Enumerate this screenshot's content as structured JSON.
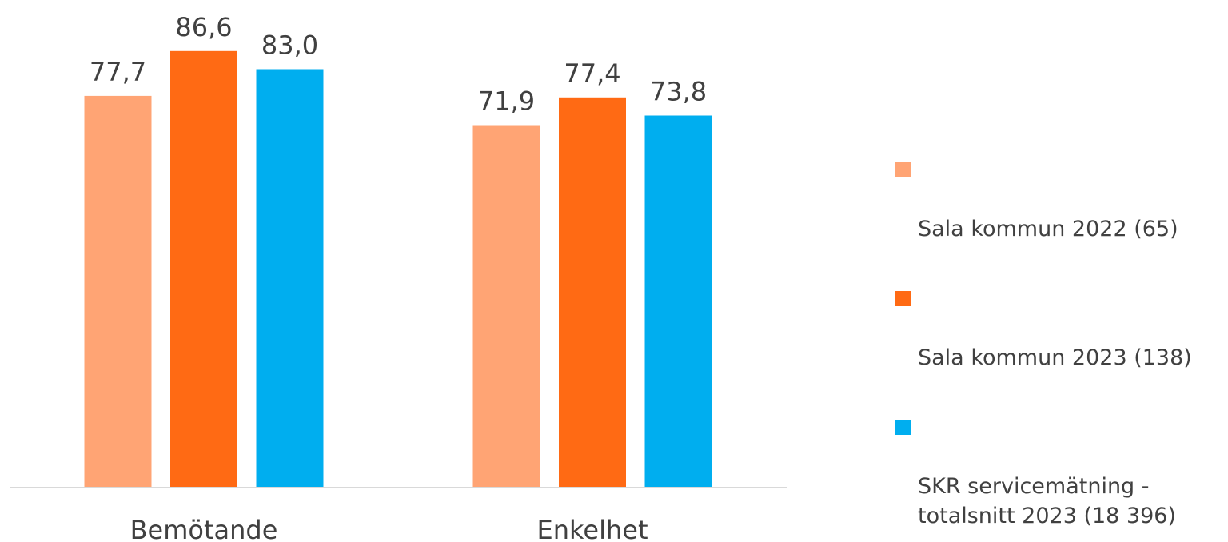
{
  "chart_data": {
    "type": "bar",
    "categories": [
      "Bemötande",
      "Enkelhet"
    ],
    "series": [
      {
        "name": "Sala kommun 2022 (65)",
        "color": "#FFA474",
        "values": [
          77.7,
          71.9
        ],
        "labels": [
          "77,7",
          "71,9"
        ]
      },
      {
        "name": "Sala kommun 2023 (138)",
        "color": "#FF6A14",
        "values": [
          86.6,
          77.4
        ],
        "labels": [
          "86,6",
          "77,4"
        ]
      },
      {
        "name": "SKR servicemätning - totalsnitt 2023 (18 396)",
        "color": "#00AEEF",
        "values": [
          83.0,
          73.8
        ],
        "labels": [
          "83,0",
          "73,8"
        ]
      }
    ],
    "ylim": [
      0,
      100
    ],
    "grid": false,
    "legend_position": "right",
    "title": "",
    "xlabel": "",
    "ylabel": ""
  },
  "legend": {
    "items": [
      {
        "label": "Sala kommun 2022 (65)",
        "color": "#FFA474"
      },
      {
        "label": "Sala kommun 2023 (138)",
        "color": "#FF6A14"
      },
      {
        "label": "SKR servicemätning -\ntotalsnitt 2023 (18 396)",
        "color": "#00AEEF"
      }
    ]
  }
}
